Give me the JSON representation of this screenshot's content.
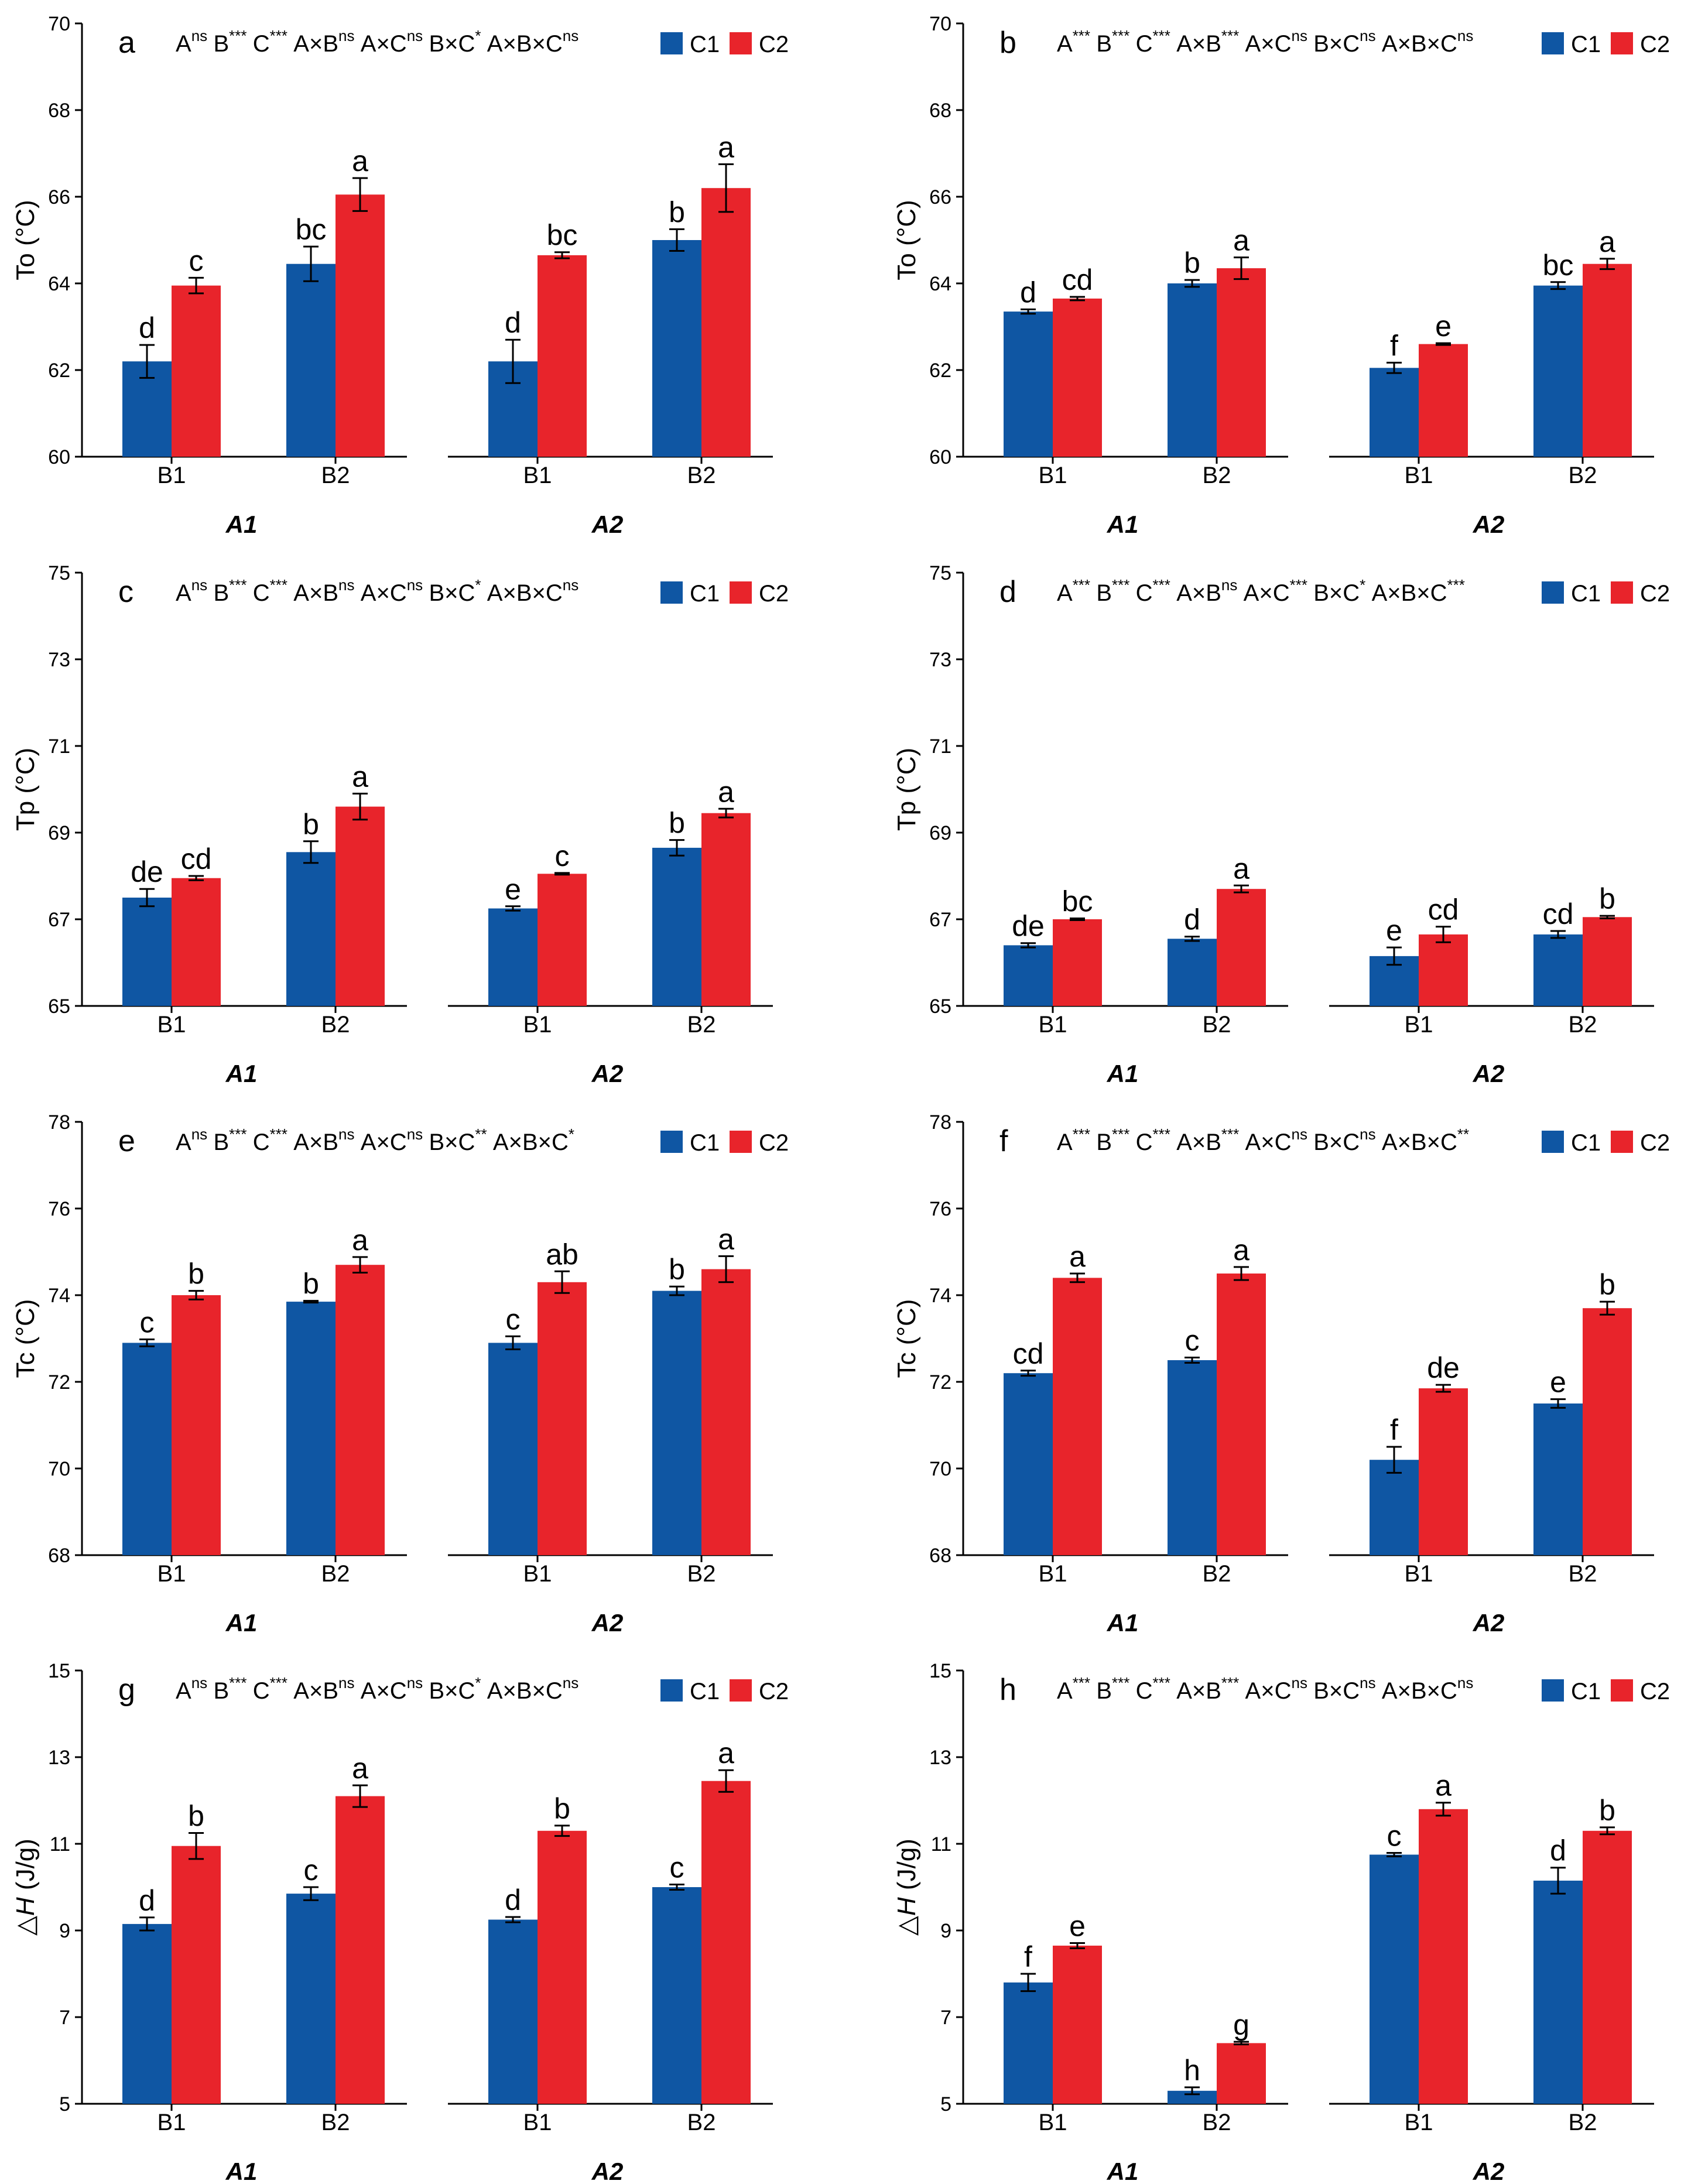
{
  "colors": {
    "C1": "#0f56a3",
    "C2": "#e8242b",
    "axis": "#000000"
  },
  "legend": [
    "C1",
    "C2"
  ],
  "groups": [
    "A1",
    "A2"
  ],
  "categories": [
    "B1",
    "B2"
  ],
  "chart_data": [
    {
      "panel": "a",
      "type": "bar",
      "ylabel": "To (°C)",
      "ylabel_parts": [
        "To (°C)"
      ],
      "ylim": [
        60,
        70
      ],
      "yticks": [
        60,
        62,
        64,
        66,
        68,
        70
      ],
      "significance": [
        [
          "A",
          "ns"
        ],
        [
          "B",
          "***"
        ],
        [
          "C",
          "***"
        ],
        [
          "A×B",
          "ns"
        ],
        [
          "A×C",
          "ns"
        ],
        [
          "B×C",
          "*"
        ],
        [
          "A×B×C",
          "ns"
        ]
      ],
      "series": [
        {
          "name": "C1",
          "values": [
            62.2,
            64.45,
            62.2,
            65.0
          ],
          "errors": [
            0.38,
            0.4,
            0.5,
            0.25
          ],
          "letters": [
            "d",
            "bc",
            "d",
            "b"
          ]
        },
        {
          "name": "C2",
          "values": [
            63.95,
            66.05,
            64.65,
            66.2
          ],
          "errors": [
            0.18,
            0.38,
            0.07,
            0.55
          ],
          "letters": [
            "c",
            "a",
            "bc",
            "a"
          ]
        }
      ]
    },
    {
      "panel": "b",
      "type": "bar",
      "ylabel": "To (°C)",
      "ylabel_parts": [
        "To (°C)"
      ],
      "ylim": [
        60,
        70
      ],
      "yticks": [
        60,
        62,
        64,
        66,
        68,
        70
      ],
      "significance": [
        [
          "A",
          "***"
        ],
        [
          "B",
          "***"
        ],
        [
          "C",
          "***"
        ],
        [
          "A×B",
          "***"
        ],
        [
          "A×C",
          "ns"
        ],
        [
          "B×C",
          "ns"
        ],
        [
          "A×B×C",
          "ns"
        ]
      ],
      "series": [
        {
          "name": "C1",
          "values": [
            63.35,
            64.0,
            62.05,
            63.95
          ],
          "errors": [
            0.05,
            0.08,
            0.12,
            0.08
          ],
          "letters": [
            "d",
            "b",
            "f",
            "bc"
          ]
        },
        {
          "name": "C2",
          "values": [
            63.65,
            64.35,
            62.6,
            64.45
          ],
          "errors": [
            0.04,
            0.25,
            0.02,
            0.12
          ],
          "letters": [
            "cd",
            "a",
            "e",
            "a"
          ]
        }
      ]
    },
    {
      "panel": "c",
      "type": "bar",
      "ylabel": "Tp (°C)",
      "ylabel_parts": [
        "Tp (°C)"
      ],
      "ylim": [
        65,
        75
      ],
      "yticks": [
        65,
        67,
        69,
        71,
        73,
        75
      ],
      "significance": [
        [
          "A",
          "ns"
        ],
        [
          "B",
          "***"
        ],
        [
          "C",
          "***"
        ],
        [
          "A×B",
          "ns"
        ],
        [
          "A×C",
          "ns"
        ],
        [
          "B×C",
          "*"
        ],
        [
          "A×B×C",
          "ns"
        ]
      ],
      "series": [
        {
          "name": "C1",
          "values": [
            67.5,
            68.55,
            67.25,
            68.65
          ],
          "errors": [
            0.2,
            0.25,
            0.05,
            0.18
          ],
          "letters": [
            "de",
            "b",
            "e",
            "b"
          ]
        },
        {
          "name": "C2",
          "values": [
            67.95,
            69.6,
            68.05,
            69.45
          ],
          "errors": [
            0.05,
            0.3,
            0.02,
            0.1
          ],
          "letters": [
            "cd",
            "a",
            "c",
            "a"
          ]
        }
      ]
    },
    {
      "panel": "d",
      "type": "bar",
      "ylabel": "Tp (°C)",
      "ylabel_parts": [
        "Tp (°C)"
      ],
      "ylim": [
        65,
        75
      ],
      "yticks": [
        65,
        67,
        69,
        71,
        73,
        75
      ],
      "significance": [
        [
          "A",
          "***"
        ],
        [
          "B",
          "***"
        ],
        [
          "C",
          "***"
        ],
        [
          "A×B",
          "ns"
        ],
        [
          "A×C",
          "***"
        ],
        [
          "B×C",
          "*"
        ],
        [
          "A×B×C",
          "***"
        ]
      ],
      "series": [
        {
          "name": "C1",
          "values": [
            66.4,
            66.55,
            66.15,
            66.65
          ],
          "errors": [
            0.05,
            0.05,
            0.2,
            0.08
          ],
          "letters": [
            "de",
            "d",
            "e",
            "cd"
          ]
        },
        {
          "name": "C2",
          "values": [
            67.0,
            67.7,
            66.65,
            67.05
          ],
          "errors": [
            0.02,
            0.08,
            0.18,
            0.03
          ],
          "letters": [
            "bc",
            "a",
            "cd",
            "b"
          ]
        }
      ]
    },
    {
      "panel": "e",
      "type": "bar",
      "ylabel": "Tc (°C)",
      "ylabel_parts": [
        "Tc (°C)"
      ],
      "ylim": [
        68,
        78
      ],
      "yticks": [
        68,
        70,
        72,
        74,
        76,
        78
      ],
      "significance": [
        [
          "A",
          "ns"
        ],
        [
          "B",
          "***"
        ],
        [
          "C",
          "***"
        ],
        [
          "A×B",
          "ns"
        ],
        [
          "A×C",
          "ns"
        ],
        [
          "B×C",
          "**"
        ],
        [
          "A×B×C",
          "*"
        ]
      ],
      "series": [
        {
          "name": "C1",
          "values": [
            72.9,
            73.85,
            72.9,
            74.1
          ],
          "errors": [
            0.08,
            0.02,
            0.15,
            0.1
          ],
          "letters": [
            "c",
            "b",
            "c",
            "b"
          ]
        },
        {
          "name": "C2",
          "values": [
            74.0,
            74.7,
            74.3,
            74.6
          ],
          "errors": [
            0.1,
            0.18,
            0.25,
            0.3
          ],
          "letters": [
            "b",
            "a",
            "ab",
            "a"
          ]
        }
      ]
    },
    {
      "panel": "f",
      "type": "bar",
      "ylabel": "Tc (°C)",
      "ylabel_parts": [
        "Tc (°C)"
      ],
      "ylim": [
        68,
        78
      ],
      "yticks": [
        68,
        70,
        72,
        74,
        76,
        78
      ],
      "significance": [
        [
          "A",
          "***"
        ],
        [
          "B",
          "***"
        ],
        [
          "C",
          "***"
        ],
        [
          "A×B",
          "***"
        ],
        [
          "A×C",
          "ns"
        ],
        [
          "B×C",
          "ns"
        ],
        [
          "A×B×C",
          "**"
        ]
      ],
      "series": [
        {
          "name": "C1",
          "values": [
            72.2,
            72.5,
            70.2,
            71.5
          ],
          "errors": [
            0.06,
            0.06,
            0.3,
            0.1
          ],
          "letters": [
            "cd",
            "c",
            "f",
            "e"
          ]
        },
        {
          "name": "C2",
          "values": [
            74.4,
            74.5,
            71.85,
            73.7
          ],
          "errors": [
            0.1,
            0.15,
            0.08,
            0.15
          ],
          "letters": [
            "a",
            "a",
            "de",
            "b"
          ]
        }
      ]
    },
    {
      "panel": "g",
      "type": "bar",
      "ylabel": "△H (J/g)",
      "ylabel_parts": [
        "△",
        "H",
        " (J/g)"
      ],
      "ylim": [
        5,
        15
      ],
      "yticks": [
        5,
        7,
        9,
        11,
        13,
        15
      ],
      "significance": [
        [
          "A",
          "ns"
        ],
        [
          "B",
          "***"
        ],
        [
          "C",
          "***"
        ],
        [
          "A×B",
          "ns"
        ],
        [
          "A×C",
          "ns"
        ],
        [
          "B×C",
          "*"
        ],
        [
          "A×B×C",
          "ns"
        ]
      ],
      "series": [
        {
          "name": "C1",
          "values": [
            9.15,
            9.85,
            9.25,
            10.0
          ],
          "errors": [
            0.15,
            0.15,
            0.06,
            0.06
          ],
          "letters": [
            "d",
            "c",
            "d",
            "c"
          ]
        },
        {
          "name": "C2",
          "values": [
            10.95,
            12.1,
            11.3,
            12.45
          ],
          "errors": [
            0.3,
            0.25,
            0.12,
            0.25
          ],
          "letters": [
            "b",
            "a",
            "b",
            "a"
          ]
        }
      ]
    },
    {
      "panel": "h",
      "type": "bar",
      "ylabel": "△H (J/g)",
      "ylabel_parts": [
        "△",
        "H",
        " (J/g)"
      ],
      "ylim": [
        5,
        15
      ],
      "yticks": [
        5,
        7,
        9,
        11,
        13,
        15
      ],
      "significance": [
        [
          "A",
          "***"
        ],
        [
          "B",
          "***"
        ],
        [
          "C",
          "***"
        ],
        [
          "A×B",
          "***"
        ],
        [
          "A×C",
          "ns"
        ],
        [
          "B×C",
          "ns"
        ],
        [
          "A×B×C",
          "ns"
        ]
      ],
      "series": [
        {
          "name": "C1",
          "values": [
            7.8,
            5.3,
            10.75,
            10.15
          ],
          "errors": [
            0.2,
            0.08,
            0.04,
            0.3
          ],
          "letters": [
            "f",
            "h",
            "c",
            "d"
          ]
        },
        {
          "name": "C2",
          "values": [
            8.65,
            6.4,
            11.8,
            11.3
          ],
          "errors": [
            0.06,
            0.03,
            0.15,
            0.08
          ],
          "letters": [
            "e",
            "g",
            "a",
            "b"
          ]
        }
      ]
    }
  ]
}
